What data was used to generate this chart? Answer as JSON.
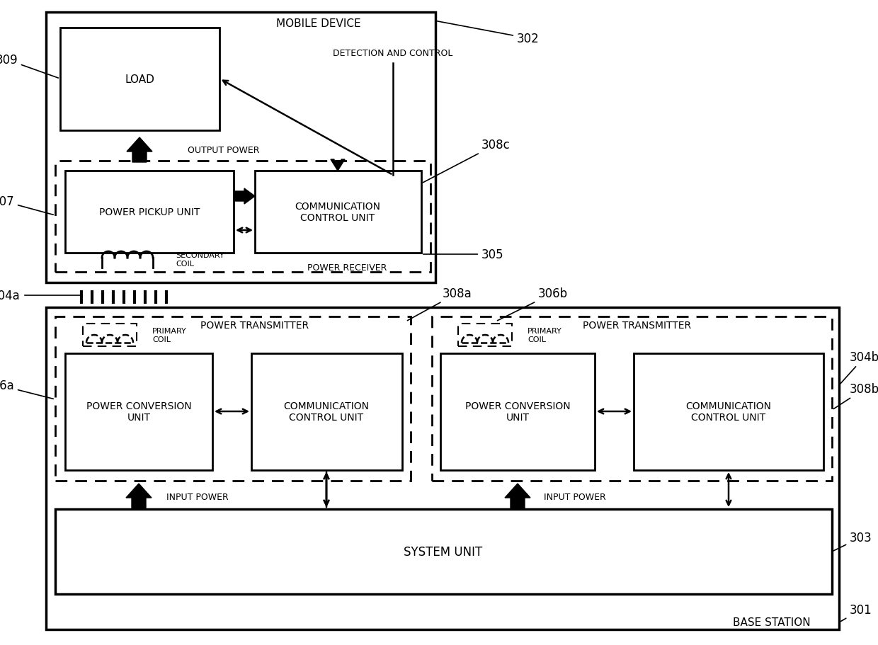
{
  "bg_color": "#ffffff",
  "fig_width": 12.4,
  "fig_height": 9.12,
  "labels": {
    "mobile_device": "MOBILE DEVICE",
    "base_station": "BASE STATION",
    "load": "LOAD",
    "detection_and_control": "DETECTION AND CONTROL",
    "output_power": "OUTPUT POWER",
    "secondary_coil": "SECONDARY\nCOIL",
    "power_receiver": "POWER RECEIVER",
    "power_pickup_unit": "POWER PICKUP UNIT",
    "comm_ctrl_top": "COMMUNICATION\nCONTROL UNIT",
    "power_transmitter": "POWER TRANSMITTER",
    "primary_coil": "PRIMARY\nCOIL",
    "power_conv_unit": "POWER CONVERSION\nUNIT",
    "comm_ctrl_unit": "COMMUNICATION\nCONTROL UNIT",
    "input_power": "INPUT POWER",
    "system_unit": "SYSTEM UNIT"
  }
}
